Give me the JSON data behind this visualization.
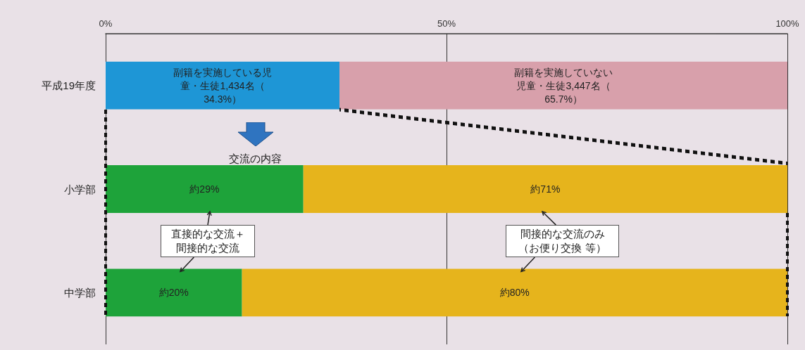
{
  "chart_data": {
    "type": "bar",
    "orientation": "horizontal",
    "stacked": true,
    "categories": [
      "平成19年度",
      "小学部",
      "中学部"
    ],
    "xlim": [
      0,
      100
    ],
    "xticks": [
      {
        "value": 0,
        "label": "0%"
      },
      {
        "value": 50,
        "label": "50%"
      },
      {
        "value": 100,
        "label": "100%"
      }
    ],
    "grid": "x",
    "annotations": [
      "交流の内容",
      "直接的な交流＋間接的な交流",
      "間接的な交流のみ（お便り交換 等）"
    ],
    "series": [
      {
        "colors": [
          "#1e96d6",
          "#1ea33a",
          "#1ea33a"
        ],
        "values": [
          34.3,
          29,
          20
        ],
        "value_labels": [
          "副籍を実施している児童・生徒1,434名（34.3%）",
          "約29%",
          "約20%"
        ]
      },
      {
        "colors": [
          "#d8a0ab",
          "#e6b41c",
          "#e6b41c"
        ],
        "values": [
          65.7,
          71,
          80
        ],
        "value_labels": [
          "副籍を実施していない児童・生徒3,447名（65.7%）",
          "約71%",
          "約80%"
        ]
      }
    ]
  }
}
